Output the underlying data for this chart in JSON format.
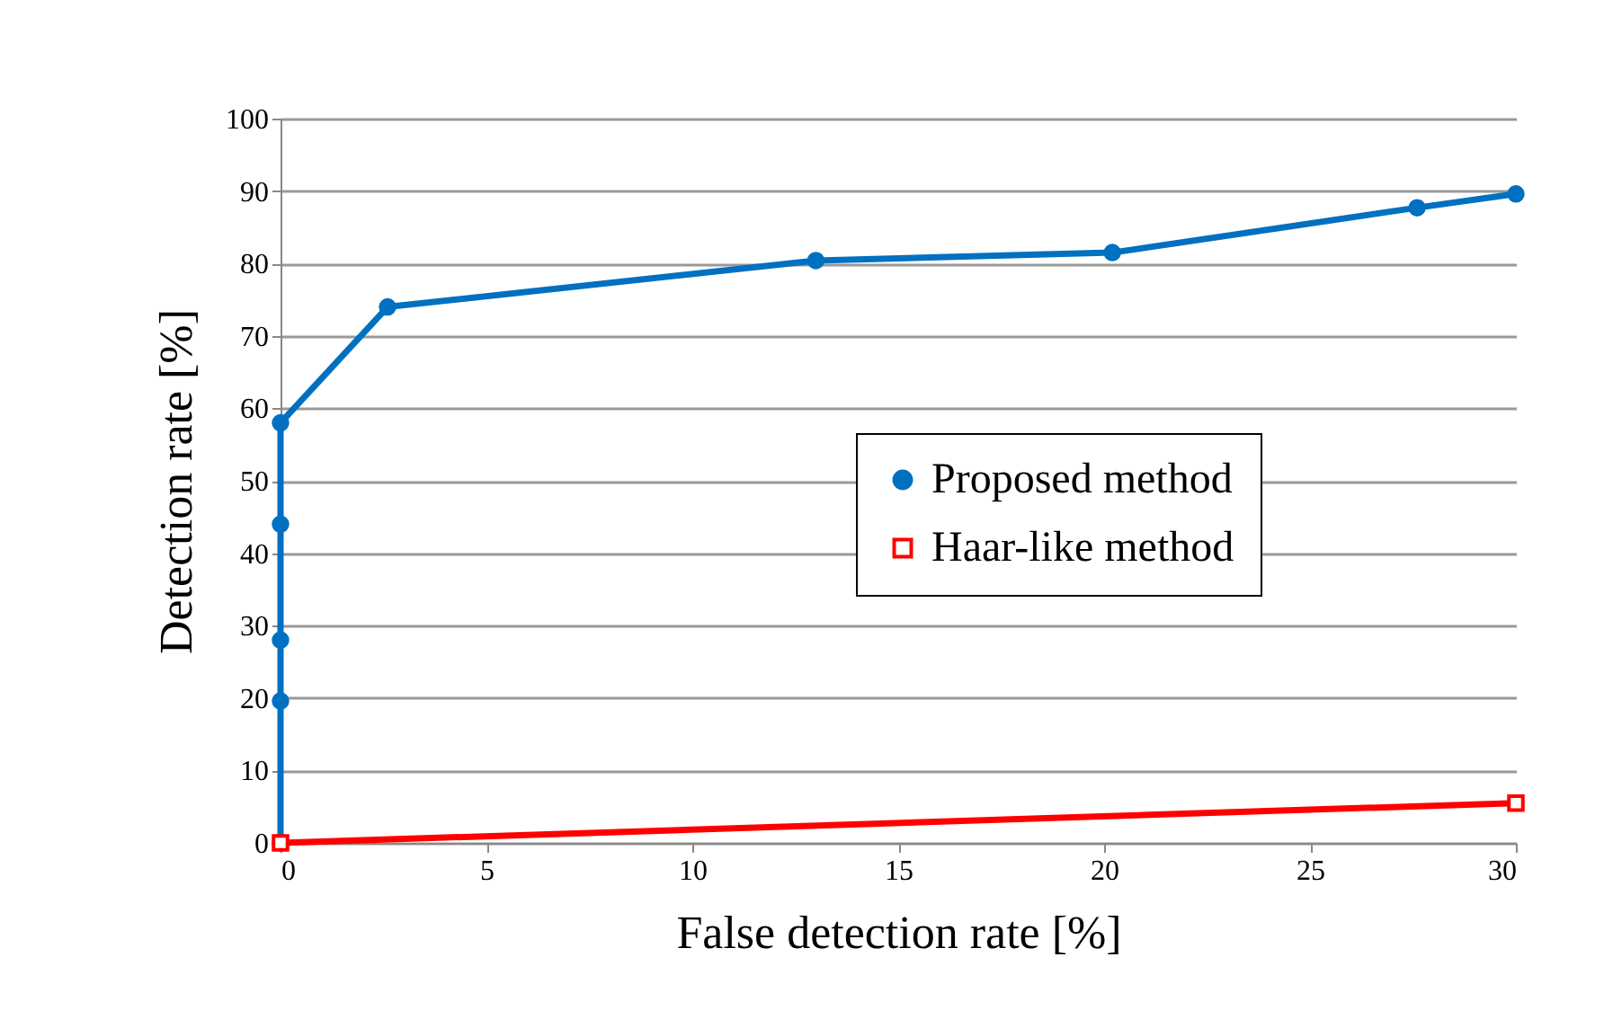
{
  "chart_data": {
    "type": "line",
    "xlabel": "False detection rate [%]",
    "ylabel": "Detection rate [%]",
    "xlim": [
      0,
      30
    ],
    "xticks": [
      0,
      5,
      10,
      15,
      20,
      25,
      30
    ],
    "ylim": [
      0,
      100
    ],
    "yticks": [
      0,
      10,
      20,
      30,
      40,
      50,
      60,
      70,
      80,
      90,
      100
    ],
    "grid": "y",
    "legend": "right",
    "line_style": "solid",
    "series": [
      {
        "name": "Proposed method",
        "color": "#0070c0",
        "marker": "circle",
        "x": [
          0,
          0,
          0,
          0,
          0,
          2.6,
          13,
          20.2,
          27.6,
          30
        ],
        "values": [
          0,
          19.6,
          28,
          44,
          58,
          74,
          80.4,
          81.5,
          87.7,
          89.6
        ]
      },
      {
        "name": "Haar-like method",
        "color": "#ff0000",
        "marker": "square",
        "x": [
          0,
          30
        ],
        "values": [
          0,
          5.5
        ]
      }
    ]
  }
}
